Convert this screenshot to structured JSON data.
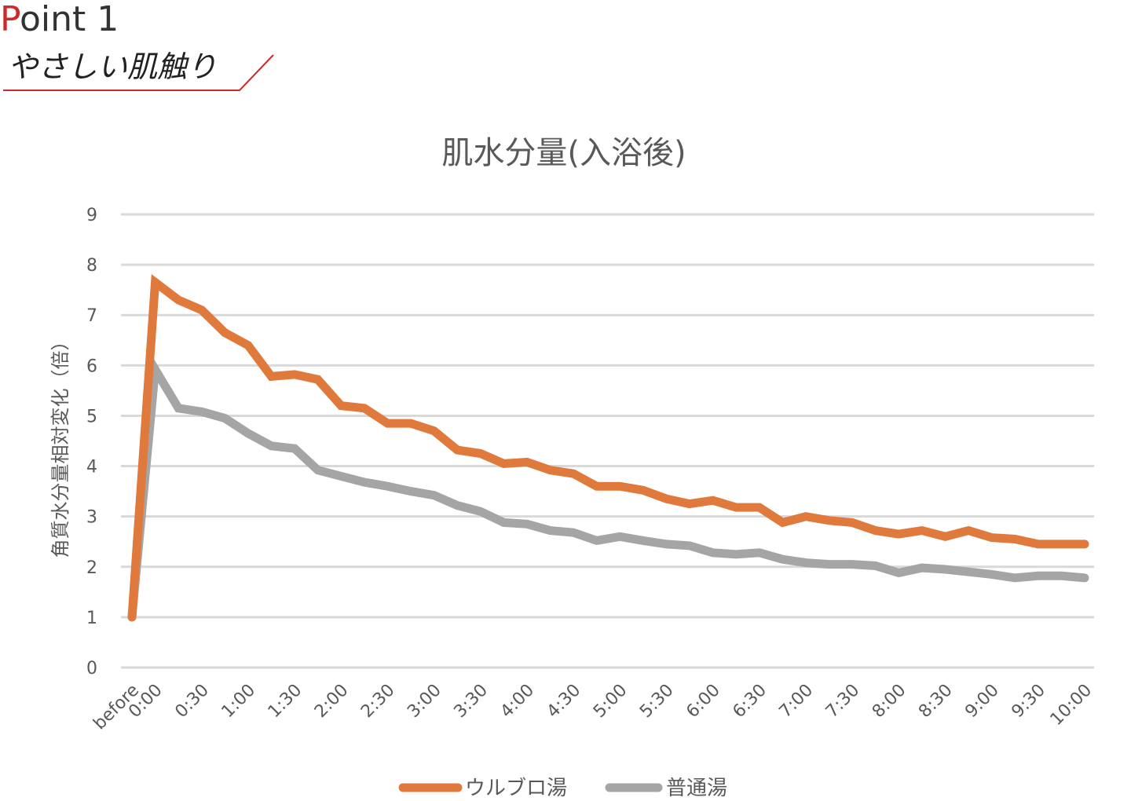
{
  "header": {
    "point_first": "P",
    "point_rest": "oint 1",
    "subtitle": "やさしい肌触り",
    "accent_color": "#cc2b2b"
  },
  "chart_data": {
    "type": "line",
    "title": "肌水分量(入浴後)",
    "ylabel": "角質水分量相対変化（倍）",
    "xlabel": "",
    "ylim": [
      0,
      9
    ],
    "yticks": [
      "0",
      "1",
      "2",
      "3",
      "4",
      "5",
      "6",
      "7",
      "8",
      "9"
    ],
    "grid": true,
    "legend_position": "bottom",
    "categories": [
      "before",
      "0:00",
      "0:15",
      "0:30",
      "0:45",
      "1:00",
      "1:15",
      "1:30",
      "1:45",
      "2:00",
      "2:15",
      "2:30",
      "2:45",
      "3:00",
      "3:15",
      "3:30",
      "3:45",
      "4:00",
      "4:15",
      "4:30",
      "4:45",
      "5:00",
      "5:15",
      "5:30",
      "5:45",
      "6:00",
      "6:15",
      "6:30",
      "6:45",
      "7:00",
      "7:15",
      "7:30",
      "7:45",
      "8:00",
      "8:15",
      "8:30",
      "8:45",
      "9:00",
      "9:15",
      "9:30",
      "9:45",
      "10:00"
    ],
    "tick_labels": [
      "before",
      "0:00",
      "",
      "0:30",
      "",
      "1:00",
      "",
      "1:30",
      "",
      "2:00",
      "",
      "2:30",
      "",
      "3:00",
      "",
      "3:30",
      "",
      "4:00",
      "",
      "4:30",
      "",
      "5:00",
      "",
      "5:30",
      "",
      "6:00",
      "",
      "6:30",
      "",
      "7:00",
      "",
      "7:30",
      "",
      "8:00",
      "",
      "8:30",
      "",
      "9:00",
      "",
      "9:30",
      "",
      "10:00"
    ],
    "series": [
      {
        "name": "ウルブロ湯",
        "color": "#e07a3c",
        "values": [
          1.0,
          7.65,
          7.3,
          7.1,
          6.65,
          6.4,
          5.78,
          5.82,
          5.72,
          5.2,
          5.15,
          4.85,
          4.85,
          4.7,
          4.32,
          4.25,
          4.05,
          4.08,
          3.92,
          3.85,
          3.6,
          3.6,
          3.52,
          3.35,
          3.25,
          3.32,
          3.18,
          3.18,
          2.88,
          3.0,
          2.92,
          2.88,
          2.72,
          2.65,
          2.72,
          2.6,
          2.72,
          2.58,
          2.55,
          2.45,
          2.45,
          2.45
        ]
      },
      {
        "name": "普通湯",
        "color": "#a5a5a5",
        "values": [
          1.0,
          5.92,
          5.15,
          5.08,
          4.95,
          4.65,
          4.4,
          4.35,
          3.92,
          3.8,
          3.68,
          3.6,
          3.5,
          3.42,
          3.22,
          3.1,
          2.88,
          2.85,
          2.72,
          2.68,
          2.52,
          2.6,
          2.52,
          2.45,
          2.42,
          2.28,
          2.25,
          2.28,
          2.15,
          2.08,
          2.05,
          2.05,
          2.02,
          1.88,
          1.98,
          1.95,
          1.9,
          1.85,
          1.78,
          1.82,
          1.82,
          1.78
        ]
      }
    ]
  }
}
